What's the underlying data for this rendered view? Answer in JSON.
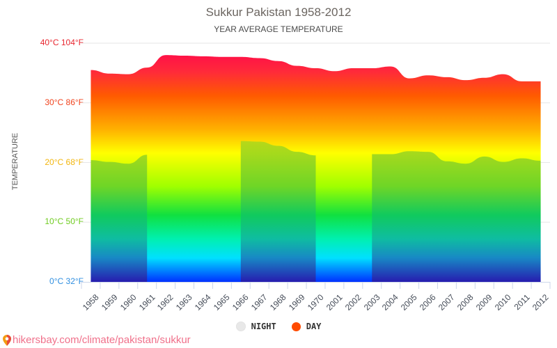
{
  "header": {
    "title": "Sukkur Pakistan 1958-2012",
    "subtitle": "YEAR AVERAGE TEMPERATURE"
  },
  "yaxis": {
    "label": "TEMPERATURE",
    "ticks": [
      {
        "label": "40°C 104°F",
        "value": 40,
        "color": "#e8262f"
      },
      {
        "label": "30°C 86°F",
        "value": 30,
        "color": "#f0431d"
      },
      {
        "label": "20°C 68°F",
        "value": 20,
        "color": "#f2b60f"
      },
      {
        "label": "10°C 50°F",
        "value": 10,
        "color": "#6fcb1f"
      },
      {
        "label": "0°C 32°F",
        "value": 0,
        "color": "#2f8ee0"
      }
    ]
  },
  "legend": {
    "items": [
      {
        "label": "NIGHT",
        "color": "#e8e8e8"
      },
      {
        "label": "DAY",
        "color": "#ff4b00"
      }
    ]
  },
  "footer": {
    "link": "hikersbay.com/climate/pakistan/sukkur"
  },
  "chart_data": {
    "type": "area",
    "title": "Sukkur Pakistan 1958-2012",
    "subtitle": "YEAR AVERAGE TEMPERATURE",
    "xlabel": "",
    "ylabel": "TEMPERATURE",
    "ylim": [
      0,
      40
    ],
    "grid": true,
    "legend_position": "bottom",
    "categories": [
      "1958",
      "1959",
      "1960",
      "1961",
      "1962",
      "1963",
      "1964",
      "1965",
      "1966",
      "1967",
      "1968",
      "1969",
      "1970",
      "2001",
      "2002",
      "2003",
      "2004",
      "2005",
      "2006",
      "2007",
      "2008",
      "2009",
      "2010",
      "2011",
      "2012"
    ],
    "series": [
      {
        "name": "NIGHT",
        "values": [
          20.4,
          20.1,
          19.8,
          21.3,
          null,
          null,
          null,
          null,
          23.6,
          23.5,
          22.8,
          21.8,
          21.2,
          null,
          null,
          21.4,
          21.4,
          21.9,
          21.8,
          20.2,
          19.8,
          21.0,
          20.1,
          20.7,
          20.3
        ]
      },
      {
        "name": "DAY",
        "values": [
          35.5,
          34.9,
          34.8,
          35.9,
          38.0,
          37.9,
          37.8,
          37.7,
          37.7,
          37.5,
          37.0,
          36.2,
          35.8,
          35.3,
          35.8,
          35.8,
          36.1,
          34.1,
          34.6,
          34.3,
          33.8,
          34.2,
          34.8,
          33.6,
          33.6
        ]
      }
    ]
  }
}
